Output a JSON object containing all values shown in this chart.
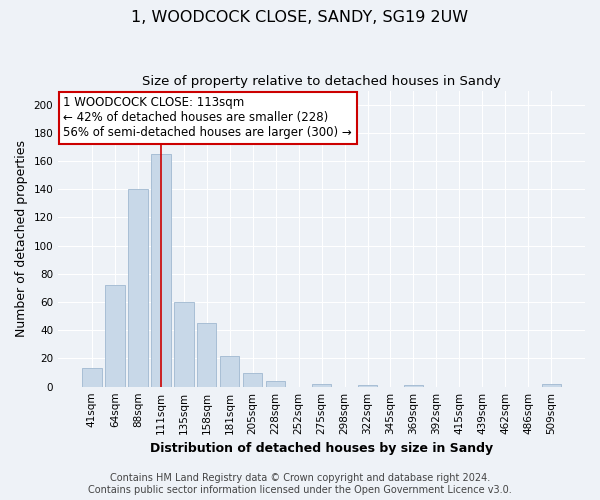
{
  "title": "1, WOODCOCK CLOSE, SANDY, SG19 2UW",
  "subtitle": "Size of property relative to detached houses in Sandy",
  "xlabel": "Distribution of detached houses by size in Sandy",
  "ylabel": "Number of detached properties",
  "bar_labels": [
    "41sqm",
    "64sqm",
    "88sqm",
    "111sqm",
    "135sqm",
    "158sqm",
    "181sqm",
    "205sqm",
    "228sqm",
    "252sqm",
    "275sqm",
    "298sqm",
    "322sqm",
    "345sqm",
    "369sqm",
    "392sqm",
    "415sqm",
    "439sqm",
    "462sqm",
    "486sqm",
    "509sqm"
  ],
  "bar_values": [
    13,
    72,
    140,
    165,
    60,
    45,
    22,
    10,
    4,
    0,
    2,
    0,
    1,
    0,
    1,
    0,
    0,
    0,
    0,
    0,
    2
  ],
  "bar_color": "#c8d8e8",
  "bar_edge_color": "#a0b8d0",
  "vline_index": 3,
  "vline_color": "#cc0000",
  "ylim": [
    0,
    210
  ],
  "yticks": [
    0,
    20,
    40,
    60,
    80,
    100,
    120,
    140,
    160,
    180,
    200
  ],
  "annotation_line1": "1 WOODCOCK CLOSE: 113sqm",
  "annotation_line2": "← 42% of detached houses are smaller (228)",
  "annotation_line3": "56% of semi-detached houses are larger (300) →",
  "footer_line1": "Contains HM Land Registry data © Crown copyright and database right 2024.",
  "footer_line2": "Contains public sector information licensed under the Open Government Licence v3.0.",
  "bg_color": "#eef2f7",
  "plot_bg_color": "#eef2f7",
  "grid_color": "#ffffff",
  "title_fontsize": 11.5,
  "subtitle_fontsize": 9.5,
  "axis_label_fontsize": 9,
  "tick_fontsize": 7.5,
  "annotation_fontsize": 8.5,
  "footer_fontsize": 7
}
